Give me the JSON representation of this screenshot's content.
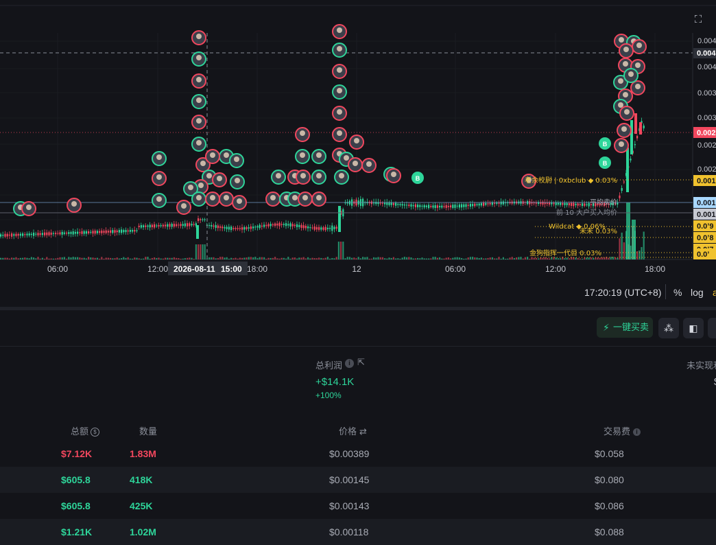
{
  "colors": {
    "up": "#2ed59a",
    "down": "#f2475e",
    "accent_yellow": "#f0c22e",
    "bg": "#131419"
  },
  "chart_data": {
    "type": "candlestick",
    "x_ticks": [
      "06:00",
      "12:00",
      "2026-08-11",
      "15:00",
      "18:00",
      "12",
      "06:00",
      "12:00",
      "18:00"
    ],
    "crosshair_date": "2026-08-11",
    "crosshair_time": "15:00",
    "y_tick_labels": [
      "0.004",
      "0.004",
      "0.004",
      "0.003",
      "0.003",
      "0.002",
      "0.002",
      "0.001",
      "0.001",
      "0.0’",
      "0.0’",
      "0.0’"
    ],
    "price_badges": [
      {
        "text": "0.002",
        "color": "#f2475e"
      },
      {
        "text": "0.001",
        "color": "#f0c22e"
      },
      {
        "text": "0.001",
        "color": "#a9d8ff"
      },
      {
        "text": "0.001",
        "color": "#c7c9d1"
      },
      {
        "text": "0.0’9",
        "color": "#f0c22e"
      },
      {
        "text": "0.0’8",
        "color": "#f0c22e"
      },
      {
        "text": "0.0’7",
        "color": "#f0c22e"
      },
      {
        "text": "0.0’",
        "color": "#f0c22e"
      }
    ],
    "annotations": [
      {
        "text": "老余校尉 | 0xbclub ◆ 0.03%",
        "color": "#f0c22e"
      },
      {
        "text": "平均卖价",
        "color": "#a9acb5"
      },
      {
        "text": "前 10 大户买入均价",
        "color": "#8a8e98"
      },
      {
        "text": "Wildcat ◆ 0.06%",
        "color": "#f0c22e"
      },
      {
        "text": "未未 0.03%",
        "color": "#f0c22e"
      },
      {
        "text": "金狗指挥一代目 0.03%",
        "color": "#f0c22e"
      }
    ]
  },
  "toolbar": {
    "clock": "17:20:19 (UTC+8)",
    "percent_label": "%",
    "log_label": "log",
    "auto_label": "a"
  },
  "actions": {
    "quick_trade_label": "一键买卖"
  },
  "stats": {
    "total_profit_label": "总利润",
    "total_profit_value": "+$14.1K",
    "total_profit_pct": "+100%",
    "unrealized_label": "未实现利",
    "unrealized_value": "$"
  },
  "table": {
    "headers": {
      "total": "总额",
      "qty": "数量",
      "price": "价格",
      "fee": "交易费"
    },
    "rows": [
      {
        "total": "$7.12K",
        "qty": "1.83M",
        "price": "$0.00389",
        "fee": "$0.058",
        "side": "sell"
      },
      {
        "total": "$605.8",
        "qty": "418K",
        "price": "$0.00145",
        "fee": "$0.080",
        "side": "buy"
      },
      {
        "total": "$605.8",
        "qty": "425K",
        "price": "$0.00143",
        "fee": "$0.086",
        "side": "buy"
      },
      {
        "total": "$1.21K",
        "qty": "1.02M",
        "price": "$0.00118",
        "fee": "$0.088",
        "side": "buy"
      }
    ]
  },
  "icons": [
    "fullscreen-icon",
    "lightning-icon",
    "share-icon",
    "panel-icon",
    "info-icon",
    "external-link-icon",
    "currency-switch-icon",
    "swap-icon"
  ]
}
